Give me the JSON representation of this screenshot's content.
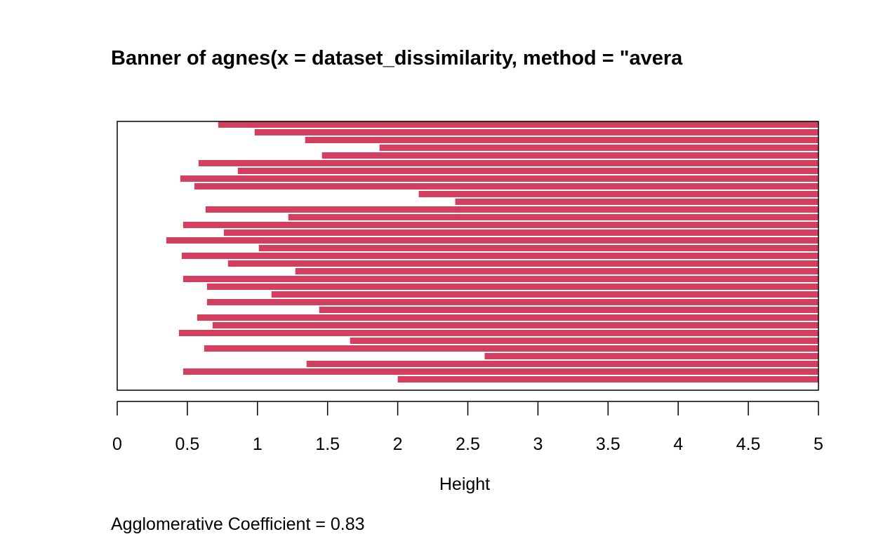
{
  "chart_data": {
    "type": "bar",
    "orientation": "horizontal",
    "title": "Banner of  agnes(x = dataset_dissimilarity, method = \"avera",
    "xlabel": "Height",
    "ylabel": "",
    "xlim": [
      0,
      5
    ],
    "x_ticks": [
      "0",
      "0.5",
      "1",
      "1.5",
      "2",
      "2.5",
      "3",
      "3.5",
      "4",
      "4.5",
      "5"
    ],
    "bar_color": "#D43F5F",
    "grid": false,
    "merge_heights": [
      0.72,
      0.98,
      1.34,
      1.87,
      1.46,
      0.58,
      0.86,
      0.45,
      0.55,
      2.15,
      2.41,
      0.63,
      1.22,
      0.47,
      0.76,
      0.35,
      1.01,
      0.46,
      0.79,
      1.27,
      0.47,
      0.64,
      1.1,
      0.64,
      1.44,
      0.57,
      0.68,
      0.44,
      1.66,
      0.62,
      2.62,
      1.35,
      0.47,
      2.0
    ],
    "footer": "Agglomerative Coefficient =  0.83"
  }
}
